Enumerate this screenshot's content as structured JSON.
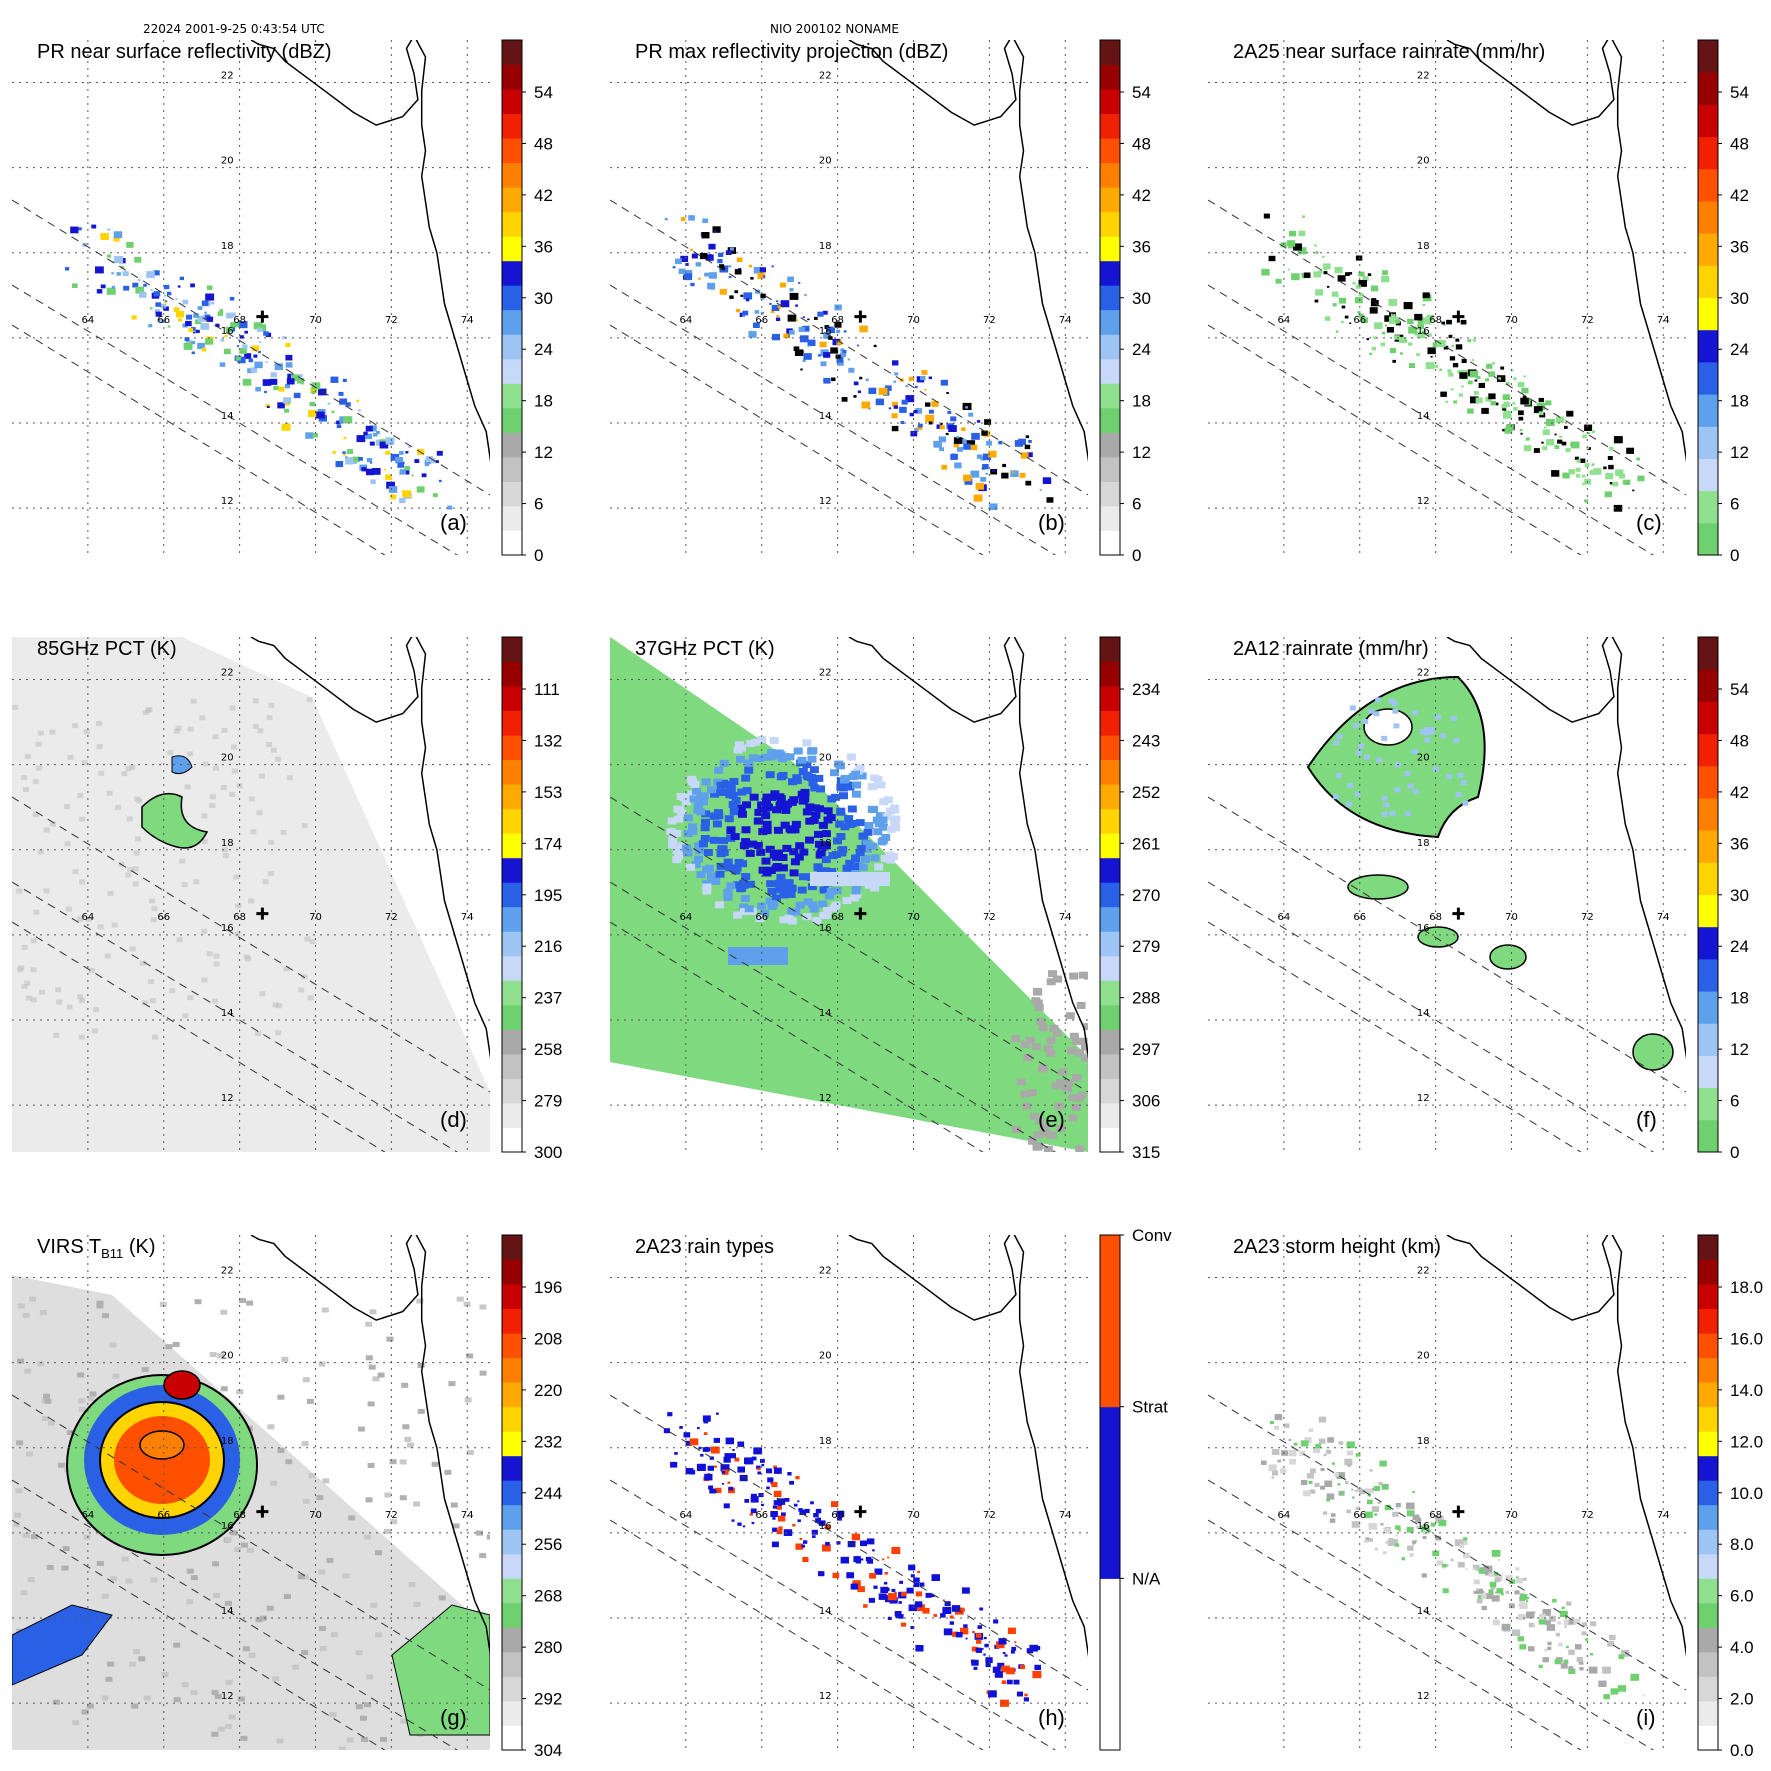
{
  "header": {
    "orbit_time": "22024 2001-9-25 0:43:54 UTC",
    "storm": "NIO 200102 NONAME"
  },
  "map": {
    "lon_ticks": [
      "64",
      "66",
      "68",
      "70",
      "72",
      "74"
    ],
    "lat_ticks": [
      "22",
      "20",
      "18",
      "16",
      "14",
      "12"
    ],
    "lon_values": [
      64,
      66,
      68,
      70,
      72,
      74
    ],
    "lat_values": [
      22,
      20,
      18,
      16,
      14,
      12
    ],
    "lon_range": [
      62,
      74.6
    ],
    "lat_range": [
      10.9,
      23
    ],
    "storm_center": {
      "lon": 68.6,
      "lat": 16.5
    }
  },
  "chart_data": [
    {
      "type": "heatmap",
      "id": "a",
      "title": "PR near surface reflectivity (dBZ)",
      "panel_letter": "(a)",
      "colorbar_ticks": [
        "54",
        "48",
        "42",
        "36",
        "30",
        "24",
        "18",
        "12",
        "6",
        "0"
      ],
      "colorbar_type": "dbz",
      "field": "pr"
    },
    {
      "type": "heatmap",
      "id": "b",
      "title": "PR max reflectivity projection (dBZ)",
      "panel_letter": "(b)",
      "colorbar_ticks": [
        "54",
        "48",
        "42",
        "36",
        "30",
        "24",
        "18",
        "12",
        "6",
        "0"
      ],
      "colorbar_type": "dbz",
      "field": "prmax"
    },
    {
      "type": "heatmap",
      "id": "c",
      "title": "2A25 near surface rainrate (mm/hr)",
      "panel_letter": "(c)",
      "colorbar_ticks": [
        "54",
        "48",
        "42",
        "36",
        "30",
        "24",
        "18",
        "12",
        "6",
        "0"
      ],
      "colorbar_type": "rain",
      "field": "rain25"
    },
    {
      "type": "heatmap",
      "id": "d",
      "title": "85GHz PCT (K)",
      "panel_letter": "(d)",
      "colorbar_ticks": [
        "111",
        "132",
        "153",
        "174",
        "195",
        "216",
        "237",
        "258",
        "279",
        "300"
      ],
      "colorbar_type": "pct",
      "field": "pct85"
    },
    {
      "type": "heatmap",
      "id": "e",
      "title": "37GHz PCT (K)",
      "panel_letter": "(e)",
      "colorbar_ticks": [
        "234",
        "243",
        "252",
        "261",
        "270",
        "279",
        "288",
        "297",
        "306",
        "315"
      ],
      "colorbar_type": "pct",
      "field": "pct37"
    },
    {
      "type": "heatmap",
      "id": "f",
      "title": "2A12 rainrate (mm/hr)",
      "panel_letter": "(f)",
      "colorbar_ticks": [
        "54",
        "48",
        "42",
        "36",
        "30",
        "24",
        "18",
        "12",
        "6",
        "0"
      ],
      "colorbar_type": "rain",
      "field": "rain12"
    },
    {
      "type": "heatmap",
      "id": "g",
      "title": "VIRS T",
      "title_sub": "B11",
      "title_tail": " (K)",
      "panel_letter": "(g)",
      "colorbar_ticks": [
        "196",
        "208",
        "220",
        "232",
        "244",
        "256",
        "268",
        "280",
        "292",
        "304"
      ],
      "colorbar_type": "pct",
      "field": "virs"
    },
    {
      "type": "heatmap",
      "id": "h",
      "title": "2A23 rain types",
      "panel_letter": "(h)",
      "colorbar_ticks": [
        "Conv",
        "Strat",
        "N/A"
      ],
      "colorbar_type": "raintype",
      "field": "raintype"
    },
    {
      "type": "heatmap",
      "id": "i",
      "title": "2A23 storm height (km)",
      "panel_letter": "(i)",
      "colorbar_ticks": [
        "18.0",
        "16.0",
        "14.0",
        "12.0",
        "10.0",
        "8.0",
        "6.0",
        "4.0",
        "2.0",
        "0.0"
      ],
      "colorbar_type": "height",
      "field": "height"
    }
  ],
  "colors": {
    "dbz_ramp": [
      "#ffffff",
      "#ececec",
      "#d7d7d7",
      "#c2c2c2",
      "#a9a9a9",
      "#6fd06f",
      "#8fe08f",
      "#c8d8f8",
      "#9ec4f4",
      "#5ea0ec",
      "#2a60e6",
      "#1414d2",
      "#ffff00",
      "#ffd400",
      "#ffaa00",
      "#ff8000",
      "#ff5000",
      "#f02000",
      "#c80000",
      "#960000",
      "#641414"
    ],
    "rain_ramp": [
      "#6fd06f",
      "#8fe08f",
      "#c8d8f8",
      "#9ec4f4",
      "#5ea0ec",
      "#2a60e6",
      "#1414d2",
      "#ffff00",
      "#ffd400",
      "#ffaa00",
      "#ff8000",
      "#ff5000",
      "#f02000",
      "#c80000",
      "#960000",
      "#641414"
    ],
    "raintype_ramp": [
      "#ffffff",
      "#1414d2",
      "#ff5000"
    ],
    "conv": "#ff4000",
    "strat": "#1010d8",
    "field_green": "#7fd97f"
  }
}
